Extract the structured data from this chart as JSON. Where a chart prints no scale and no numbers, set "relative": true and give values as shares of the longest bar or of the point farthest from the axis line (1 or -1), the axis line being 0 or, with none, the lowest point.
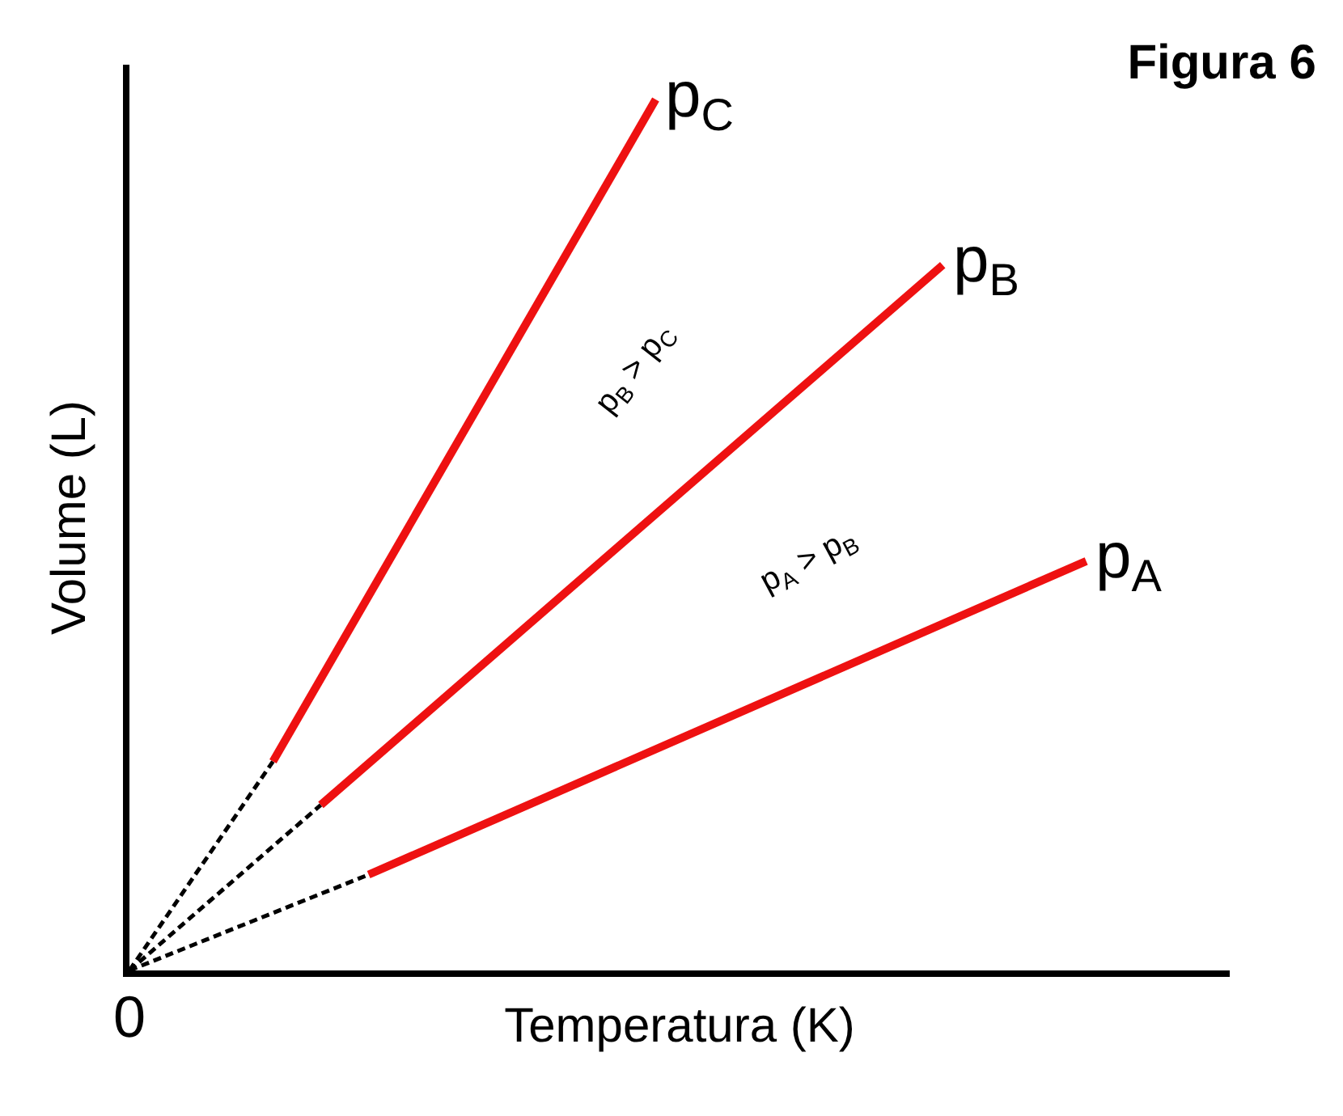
{
  "chart_data": {
    "type": "line",
    "title": "Figura 6",
    "xlabel": "Temperatura (K)",
    "ylabel": "Volume (L)",
    "relative": true,
    "legend": false,
    "marker": "none",
    "categories": [
      null,
      null,
      null,
      null,
      null,
      null,
      null,
      null,
      null,
      null,
      null,
      null,
      null,
      null,
      null,
      null,
      null,
      null,
      null,
      null,
      null,
      null,
      null,
      null
    ],
    "series": [
      {
        "color": "#000000",
        "line_style": "dashed",
        "values": [
          0,
          null,
          null,
          0.24,
          null,
          null,
          null,
          null,
          null,
          null,
          null,
          null,
          null,
          null,
          null,
          null,
          null,
          null,
          null,
          null,
          null,
          null,
          null,
          null
        ]
      },
      {
        "name": "p$_{C}$",
        "color": "#ee1111",
        "line_style": "solid",
        "values": [
          null,
          null,
          null,
          0.24,
          null,
          null,
          null,
          null,
          null,
          null,
          null,
          1,
          null,
          null,
          null,
          null,
          null,
          null,
          null,
          null,
          null,
          null,
          null,
          null
        ]
      },
      {
        "color": "#000000",
        "line_style": "dashed",
        "values": [
          0,
          null,
          null,
          null,
          0.19,
          null,
          null,
          null,
          null,
          null,
          null,
          null,
          null,
          null,
          null,
          null,
          null,
          null,
          null,
          null,
          null,
          null,
          null,
          null
        ]
      },
      {
        "name": "p$_{B}$",
        "color": "#ee1111",
        "line_style": "solid",
        "values": [
          null,
          null,
          null,
          null,
          0.19,
          null,
          null,
          null,
          null,
          null,
          null,
          null,
          null,
          null,
          null,
          null,
          null,
          0.81,
          null,
          null,
          null,
          null,
          null,
          null
        ]
      },
      {
        "color": "#000000",
        "line_style": "dashed",
        "values": [
          0,
          null,
          null,
          null,
          null,
          0.11,
          null,
          null,
          null,
          null,
          null,
          null,
          null,
          null,
          null,
          null,
          null,
          null,
          null,
          null,
          null,
          null,
          null,
          null
        ]
      },
      {
        "name": "p$_{A}$",
        "color": "#ee1111",
        "line_style": "solid",
        "values": [
          null,
          null,
          null,
          null,
          null,
          0.11,
          null,
          null,
          null,
          null,
          null,
          null,
          null,
          null,
          null,
          null,
          null,
          null,
          null,
          null,
          0.47,
          null,
          null,
          null
        ]
      }
    ],
    "annotations": [
      "p$_{B}$ > p$_{C}$",
      "p$_{A}$ > p$_{B}$",
      "0"
    ]
  }
}
